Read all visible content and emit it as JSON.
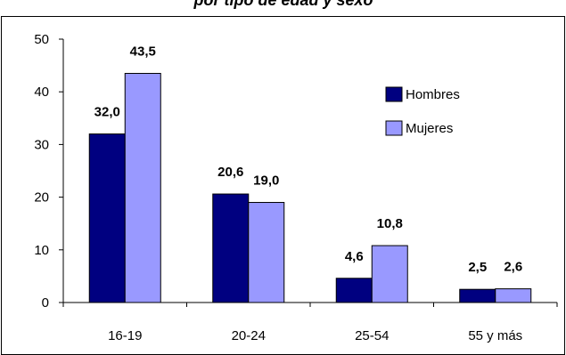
{
  "chart_data": {
    "type": "bar",
    "title": "por   tipo   de   edad   y   sexo",
    "categories": [
      "16-19",
      "20-24",
      "25-54",
      "55 y más"
    ],
    "series": [
      {
        "name": "Hombres",
        "values": [
          32.0,
          20.6,
          4.6,
          2.5
        ],
        "value_labels": [
          "32,0",
          "20,6",
          "4,6",
          "2,5"
        ],
        "color": "#000080"
      },
      {
        "name": "Mujeres",
        "values": [
          43.5,
          19.0,
          10.8,
          2.6
        ],
        "value_labels": [
          "43,5",
          "19,0",
          "10,8",
          "2,6"
        ],
        "color": "#9999ff"
      }
    ],
    "ylim": [
      0,
      50
    ],
    "yticks": [
      0,
      10,
      20,
      30,
      40,
      50
    ],
    "xlabel": "",
    "ylabel": "",
    "grid": false,
    "legend_position": "right"
  }
}
